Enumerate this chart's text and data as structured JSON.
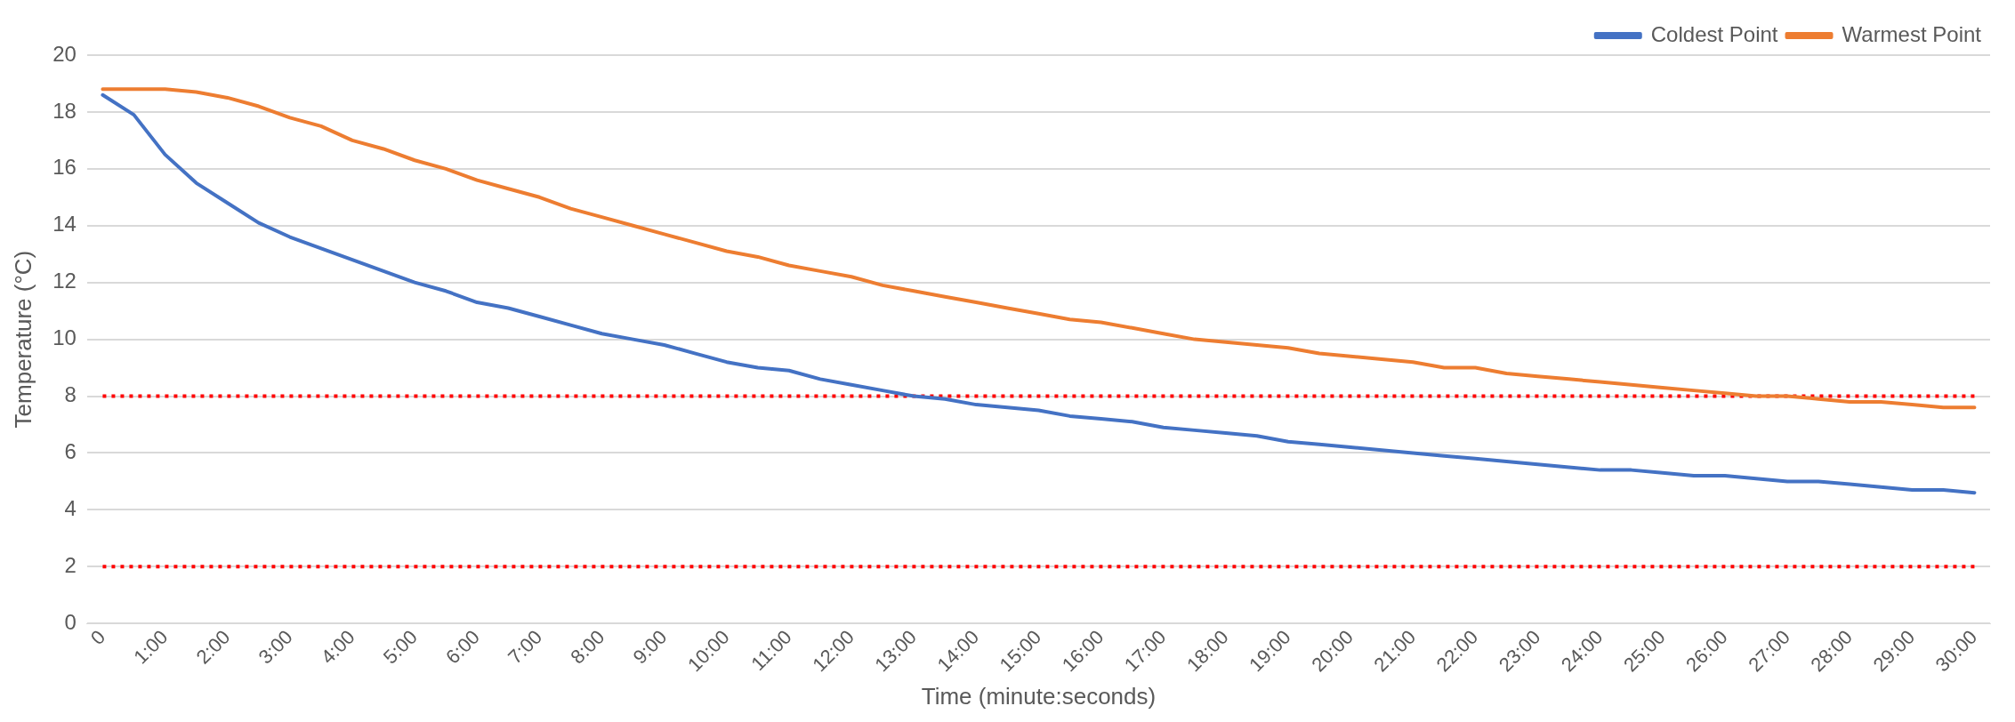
{
  "chart_data": {
    "type": "line",
    "xlabel": "Time (minute:seconds)",
    "ylabel": "Temperature (°C)",
    "categories": [
      "0",
      null,
      "1:00",
      null,
      "2:00",
      null,
      "3:00",
      null,
      "4:00",
      null,
      "5:00",
      null,
      "6:00",
      null,
      "7:00",
      null,
      "8:00",
      null,
      "9:00",
      null,
      "10:00",
      null,
      "11:00",
      null,
      "12:00",
      null,
      "13:00",
      null,
      "14:00",
      null,
      "15:00",
      null,
      "16:00",
      null,
      "17:00",
      null,
      "18:00",
      null,
      "19:00",
      null,
      "20:00",
      null,
      "21:00",
      null,
      "22:00",
      null,
      "23:00",
      null,
      "24:00",
      null,
      "25:00",
      null,
      "26:00",
      null,
      "27:00",
      null,
      "28:00",
      null,
      "29:00",
      null,
      "30:00"
    ],
    "series": [
      {
        "name": "Coldest Point",
        "color": "#4472c4",
        "values": [
          18.6,
          17.9,
          16.5,
          15.5,
          14.8,
          14.1,
          13.6,
          13.2,
          12.8,
          12.4,
          12.0,
          11.7,
          11.3,
          11.1,
          10.8,
          10.5,
          10.2,
          10.0,
          9.8,
          9.5,
          9.2,
          9.0,
          8.9,
          8.6,
          8.4,
          8.2,
          8.0,
          7.9,
          7.7,
          7.6,
          7.5,
          7.3,
          7.2,
          7.1,
          6.9,
          6.8,
          6.7,
          6.6,
          6.4,
          6.3,
          6.2,
          6.1,
          6.0,
          5.9,
          5.8,
          5.7,
          5.6,
          5.5,
          5.4,
          5.4,
          5.3,
          5.2,
          5.2,
          5.1,
          5.0,
          5.0,
          4.9,
          4.8,
          4.7,
          4.7,
          4.6
        ]
      },
      {
        "name": "Warmest Point",
        "color": "#ed7d31",
        "values": [
          18.8,
          18.8,
          18.8,
          18.7,
          18.5,
          18.2,
          17.8,
          17.5,
          17.0,
          16.7,
          16.3,
          16.0,
          15.6,
          15.3,
          15.0,
          14.6,
          14.3,
          14.0,
          13.7,
          13.4,
          13.1,
          12.9,
          12.6,
          12.4,
          12.2,
          11.9,
          11.7,
          11.5,
          11.3,
          11.1,
          10.9,
          10.7,
          10.6,
          10.4,
          10.2,
          10.0,
          9.9,
          9.8,
          9.7,
          9.5,
          9.4,
          9.3,
          9.2,
          9.0,
          9.0,
          8.8,
          8.7,
          8.6,
          8.5,
          8.4,
          8.3,
          8.2,
          8.1,
          8.0,
          8.0,
          7.9,
          7.8,
          7.8,
          7.7,
          7.6,
          7.6
        ]
      },
      {
        "color": "#ff0000",
        "line_style": "dotted",
        "values": [
          8,
          8,
          8,
          8,
          8,
          8,
          8,
          8,
          8,
          8,
          8,
          8,
          8,
          8,
          8,
          8,
          8,
          8,
          8,
          8,
          8,
          8,
          8,
          8,
          8,
          8,
          8,
          8,
          8,
          8,
          8,
          8,
          8,
          8,
          8,
          8,
          8,
          8,
          8,
          8,
          8,
          8,
          8,
          8,
          8,
          8,
          8,
          8,
          8,
          8,
          8,
          8,
          8,
          8,
          8,
          8,
          8,
          8,
          8,
          8,
          8
        ]
      },
      {
        "color": "#ff0000",
        "line_style": "dotted",
        "values": [
          2,
          2,
          2,
          2,
          2,
          2,
          2,
          2,
          2,
          2,
          2,
          2,
          2,
          2,
          2,
          2,
          2,
          2,
          2,
          2,
          2,
          2,
          2,
          2,
          2,
          2,
          2,
          2,
          2,
          2,
          2,
          2,
          2,
          2,
          2,
          2,
          2,
          2,
          2,
          2,
          2,
          2,
          2,
          2,
          2,
          2,
          2,
          2,
          2,
          2,
          2,
          2,
          2,
          2,
          2,
          2,
          2,
          2,
          2,
          2,
          2
        ]
      }
    ],
    "ylim": [
      0,
      20
    ],
    "yticks": [
      0,
      2,
      4,
      6,
      8,
      10,
      12,
      14,
      16,
      18,
      20
    ],
    "grid": "y",
    "legend": "top right",
    "marker": "none",
    "line_style": "solid"
  }
}
